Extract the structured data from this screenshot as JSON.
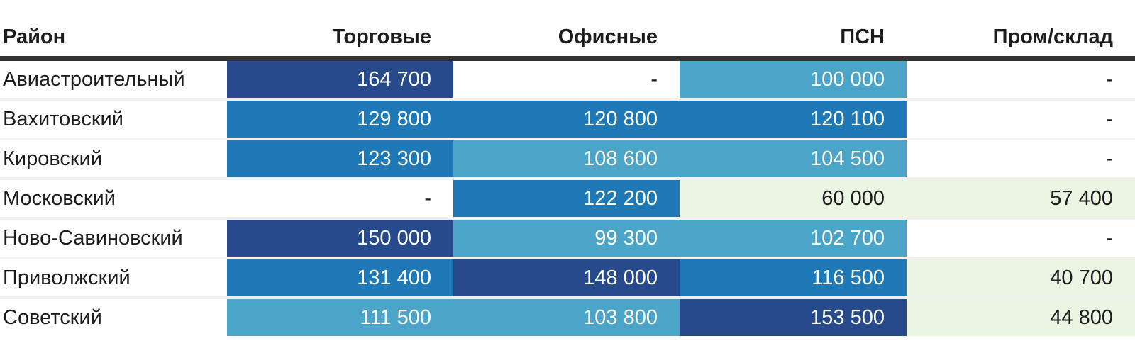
{
  "palette": {
    "tier_darkest": "#264a8b",
    "tier_mid": "#1e79b6",
    "tier_light": "#4aa5c8",
    "tier_green": "#eaf5e3",
    "header_rule": "#333333",
    "row_separator": "#f0f0f0",
    "text_dark": "#1c1c1c",
    "text_light": "#ffffff"
  },
  "table": {
    "columns": [
      {
        "key": "district",
        "label": "Район",
        "align": "left"
      },
      {
        "key": "retail",
        "label": "Торговые",
        "align": "right"
      },
      {
        "key": "office",
        "label": "Офисные",
        "align": "right"
      },
      {
        "key": "psn",
        "label": "ПСН",
        "align": "right"
      },
      {
        "key": "industrial",
        "label": "Пром/склад",
        "align": "right"
      }
    ],
    "rows": [
      {
        "district": "Авиастроительный",
        "cells": [
          {
            "value": "164 700",
            "tier": "darkest"
          },
          {
            "value": "-",
            "tier": "blank"
          },
          {
            "value": "100 000",
            "tier": "light"
          },
          {
            "value": "-",
            "tier": "blank"
          }
        ]
      },
      {
        "district": "Вахитовский",
        "cells": [
          {
            "value": "129 800",
            "tier": "mid"
          },
          {
            "value": "120 800",
            "tier": "mid"
          },
          {
            "value": "120 100",
            "tier": "mid"
          },
          {
            "value": "-",
            "tier": "blank"
          }
        ]
      },
      {
        "district": "Кировский",
        "cells": [
          {
            "value": "123 300",
            "tier": "mid"
          },
          {
            "value": "108 600",
            "tier": "light"
          },
          {
            "value": "104 500",
            "tier": "light"
          },
          {
            "value": "-",
            "tier": "blank"
          }
        ]
      },
      {
        "district": "Московский",
        "cells": [
          {
            "value": "-",
            "tier": "blank"
          },
          {
            "value": "122 200",
            "tier": "mid"
          },
          {
            "value": "60 000",
            "tier": "green"
          },
          {
            "value": "57 400",
            "tier": "green"
          }
        ]
      },
      {
        "district": "Ново-Савиновский",
        "cells": [
          {
            "value": "150 000",
            "tier": "darkest"
          },
          {
            "value": "99 300",
            "tier": "light"
          },
          {
            "value": "102 700",
            "tier": "light"
          },
          {
            "value": "-",
            "tier": "blank"
          }
        ]
      },
      {
        "district": "Приволжский",
        "cells": [
          {
            "value": "131 400",
            "tier": "mid"
          },
          {
            "value": "148 000",
            "tier": "darkest"
          },
          {
            "value": "116 500",
            "tier": "mid"
          },
          {
            "value": "40 700",
            "tier": "green"
          }
        ]
      },
      {
        "district": "Советский",
        "cells": [
          {
            "value": "111 500",
            "tier": "light"
          },
          {
            "value": "103 800",
            "tier": "light"
          },
          {
            "value": "153 500",
            "tier": "darkest"
          },
          {
            "value": "44 800",
            "tier": "green"
          }
        ]
      }
    ]
  },
  "chart_data": {
    "type": "heatmap",
    "title": "",
    "row_header_label": "Район",
    "columns": [
      "Торговые",
      "Офисные",
      "ПСН",
      "Пром/склад"
    ],
    "rows": [
      "Авиастроительный",
      "Вахитовский",
      "Кировский",
      "Московский",
      "Ново-Савиновский",
      "Приволжский",
      "Советский"
    ],
    "values": [
      [
        164700,
        null,
        100000,
        null
      ],
      [
        129800,
        120800,
        120100,
        null
      ],
      [
        123300,
        108600,
        104500,
        null
      ],
      [
        null,
        122200,
        60000,
        57400
      ],
      [
        150000,
        99300,
        102700,
        null
      ],
      [
        131400,
        148000,
        116500,
        40700
      ],
      [
        111500,
        103800,
        153500,
        44800
      ]
    ],
    "legend": "off",
    "grid": "off",
    "color_scale": [
      "#eaf5e3",
      "#4aa5c8",
      "#1e79b6",
      "#264a8b"
    ]
  }
}
